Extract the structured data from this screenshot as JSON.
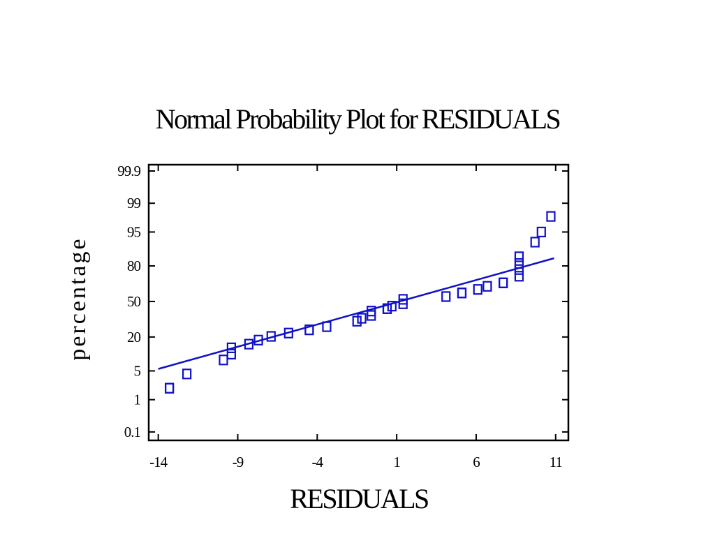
{
  "chart_data": {
    "type": "scatter",
    "title": "Normal Probability Plot for RESIDUALS",
    "xlabel": "RESIDUALS",
    "ylabel": "percentage",
    "x_ticks": [
      -14,
      -9,
      -4,
      1,
      6,
      11
    ],
    "x_tick_labels": [
      "-14",
      "-9",
      "-4",
      "1",
      "6",
      "11"
    ],
    "y_scale": "normal-probability",
    "y_ticks": [
      0.1,
      1,
      5,
      20,
      50,
      80,
      95,
      99,
      99.9
    ],
    "y_tick_labels": [
      "0.1",
      "1",
      "5",
      "20",
      "50",
      "80",
      "95",
      "99",
      "99.9"
    ],
    "xlim": [
      -14.6,
      11.8
    ],
    "ylim": [
      0.05,
      99.94
    ],
    "grid": false,
    "legend": "none",
    "colors": {
      "series": "#1010c8",
      "axes": "#000000"
    },
    "series": [
      {
        "marker": "square",
        "points": [
          [
            -13.3,
            2.0
          ],
          [
            -12.2,
            4.3
          ],
          [
            -9.9,
            8.3
          ],
          [
            -9.4,
            10.6
          ],
          [
            -9.4,
            13.6
          ],
          [
            -8.3,
            15.6
          ],
          [
            -7.7,
            18.0
          ],
          [
            -6.9,
            20.4
          ],
          [
            -5.8,
            22.7
          ],
          [
            -4.5,
            25.1
          ],
          [
            -3.4,
            27.5
          ],
          [
            -1.5,
            32.0
          ],
          [
            -1.2,
            34.5
          ],
          [
            -0.6,
            37.0
          ],
          [
            -0.6,
            41.0
          ],
          [
            0.4,
            43.2
          ],
          [
            0.7,
            45.6
          ],
          [
            1.4,
            47.8
          ],
          [
            1.4,
            52.0
          ],
          [
            4.1,
            54.6
          ],
          [
            5.1,
            58.0
          ],
          [
            6.1,
            61.2
          ],
          [
            6.7,
            64.0
          ],
          [
            7.7,
            67.0
          ],
          [
            8.7,
            72.5
          ],
          [
            8.7,
            77.5
          ],
          [
            8.7,
            81.6
          ],
          [
            8.7,
            85.5
          ],
          [
            9.7,
            92.0
          ],
          [
            10.1,
            95.0
          ],
          [
            10.7,
            97.8
          ],
          [
            -13.3,
            2.0
          ],
          [
            -4.5,
            25.1
          ],
          [
            0.4,
            43.2
          ],
          [
            5.1,
            58.0
          ],
          [
            7.7,
            67.0
          ]
        ]
      }
    ],
    "fit_line": {
      "x": [
        -14.0,
        10.9
      ],
      "y": [
        5.5,
        84.7
      ]
    }
  }
}
